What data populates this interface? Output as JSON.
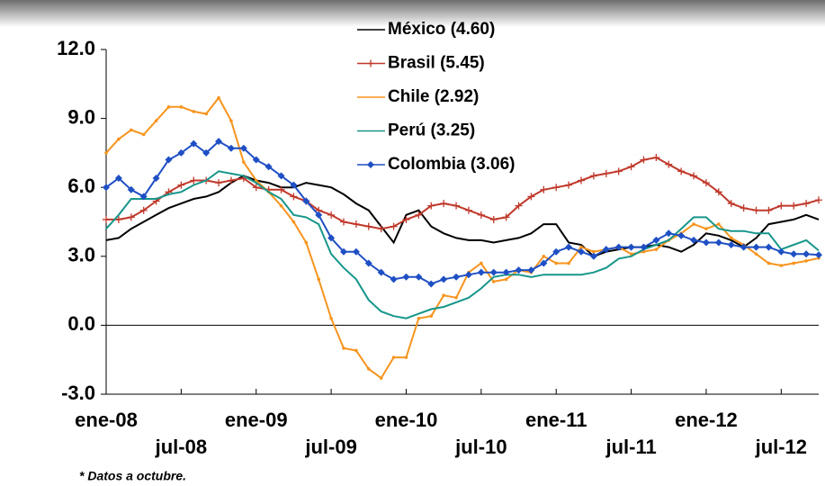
{
  "chart_data": {
    "type": "line",
    "note": "* Datos a octubre.",
    "categories": [
      "ene-08",
      null,
      null,
      null,
      null,
      null,
      "jul-08",
      null,
      null,
      null,
      null,
      null,
      "ene-09",
      null,
      null,
      null,
      null,
      null,
      "jul-09",
      null,
      null,
      null,
      null,
      null,
      "ene-10",
      null,
      null,
      null,
      null,
      null,
      "jul-10",
      null,
      null,
      null,
      null,
      null,
      "ene-11",
      null,
      null,
      null,
      null,
      null,
      "jul-11",
      null,
      null,
      null,
      null,
      null,
      "ene-12",
      null,
      null,
      null,
      null,
      null,
      "jul-12",
      null,
      null,
      null
    ],
    "ylim": [
      -3,
      12
    ],
    "yticks": [
      {
        "value": -3,
        "label": "-3.0"
      },
      {
        "value": 0,
        "label": "0.0"
      },
      {
        "value": 3,
        "label": "3.0"
      },
      {
        "value": 6,
        "label": "6.0"
      },
      {
        "value": 9,
        "label": "9.0"
      },
      {
        "value": 12,
        "label": "12.0"
      }
    ],
    "series": [
      {
        "name": "México (4.60)",
        "color": "#000000",
        "marker": "none",
        "values": [
          3.7,
          3.8,
          4.2,
          4.5,
          4.8,
          5.1,
          5.3,
          5.5,
          5.6,
          5.8,
          6.2,
          6.5,
          6.3,
          6.2,
          6.0,
          6.0,
          6.2,
          6.1,
          6.0,
          5.7,
          5.3,
          5.0,
          4.3,
          3.6,
          4.8,
          5.0,
          4.3,
          4.0,
          3.8,
          3.7,
          3.7,
          3.6,
          3.7,
          3.8,
          4.0,
          4.4,
          4.4,
          3.6,
          3.5,
          3.0,
          3.2,
          3.3,
          3.4,
          3.4,
          3.5,
          3.4,
          3.2,
          3.5,
          4.0,
          3.9,
          3.7,
          3.4,
          3.8,
          4.4,
          4.5,
          4.6,
          4.8,
          4.6
        ]
      },
      {
        "name": "Brasil (5.45)",
        "color": "#c0392b",
        "marker": "plus",
        "values": [
          4.6,
          4.6,
          4.7,
          5.0,
          5.4,
          5.8,
          6.1,
          6.3,
          6.3,
          6.2,
          6.3,
          6.4,
          6.0,
          5.9,
          5.9,
          5.6,
          5.4,
          5.0,
          4.8,
          4.5,
          4.4,
          4.3,
          4.2,
          4.3,
          4.6,
          4.8,
          5.2,
          5.3,
          5.2,
          5.0,
          4.8,
          4.6,
          4.7,
          5.2,
          5.6,
          5.9,
          6.0,
          6.1,
          6.3,
          6.5,
          6.6,
          6.7,
          6.9,
          7.2,
          7.3,
          7.0,
          6.7,
          6.5,
          6.2,
          5.8,
          5.3,
          5.1,
          5.0,
          5.0,
          5.2,
          5.2,
          5.3,
          5.45
        ]
      },
      {
        "name": "Chile (2.92)",
        "color": "#f7941d",
        "marker": "dot",
        "values": [
          7.5,
          8.1,
          8.5,
          8.3,
          8.9,
          9.5,
          9.5,
          9.3,
          9.2,
          9.9,
          8.9,
          7.1,
          6.3,
          5.8,
          5.2,
          4.5,
          3.6,
          2.0,
          0.3,
          -1.0,
          -1.1,
          -1.9,
          -2.3,
          -1.4,
          -1.4,
          0.3,
          0.4,
          1.3,
          1.2,
          2.3,
          2.7,
          1.9,
          2.0,
          2.4,
          2.3,
          3.0,
          2.7,
          2.7,
          3.4,
          3.2,
          3.3,
          3.4,
          3.1,
          3.2,
          3.3,
          3.7,
          4.0,
          4.4,
          4.2,
          4.4,
          3.8,
          3.5,
          3.1,
          2.7,
          2.6,
          2.7,
          2.8,
          2.92
        ]
      },
      {
        "name": "Perú (3.25)",
        "color": "#17968a",
        "marker": "none",
        "values": [
          4.2,
          4.8,
          5.5,
          5.5,
          5.5,
          5.7,
          5.8,
          6.1,
          6.3,
          6.7,
          6.6,
          6.5,
          6.2,
          5.8,
          5.5,
          4.8,
          4.7,
          4.4,
          3.1,
          2.5,
          2.0,
          1.1,
          0.6,
          0.4,
          0.3,
          0.5,
          0.7,
          0.8,
          1.0,
          1.2,
          1.6,
          2.1,
          2.2,
          2.2,
          2.1,
          2.2,
          2.2,
          2.2,
          2.2,
          2.3,
          2.5,
          2.9,
          3.0,
          3.3,
          3.5,
          3.7,
          4.2,
          4.7,
          4.7,
          4.2,
          4.1,
          4.1,
          4.0,
          4.0,
          3.3,
          3.5,
          3.7,
          3.25
        ]
      },
      {
        "name": "Colombia (3.06)",
        "color": "#1f4fc4",
        "marker": "diamond",
        "values": [
          6.0,
          6.4,
          5.9,
          5.6,
          6.4,
          7.2,
          7.5,
          7.9,
          7.5,
          8.0,
          7.7,
          7.7,
          7.2,
          6.9,
          6.5,
          6.1,
          5.4,
          4.8,
          3.8,
          3.2,
          3.2,
          2.7,
          2.3,
          2.0,
          2.1,
          2.1,
          1.8,
          2.0,
          2.1,
          2.2,
          2.3,
          2.3,
          2.3,
          2.4,
          2.4,
          2.7,
          3.2,
          3.4,
          3.2,
          3.0,
          3.3,
          3.4,
          3.4,
          3.4,
          3.7,
          4.0,
          3.9,
          3.7,
          3.6,
          3.6,
          3.5,
          3.4,
          3.4,
          3.4,
          3.2,
          3.1,
          3.1,
          3.06
        ]
      }
    ]
  }
}
